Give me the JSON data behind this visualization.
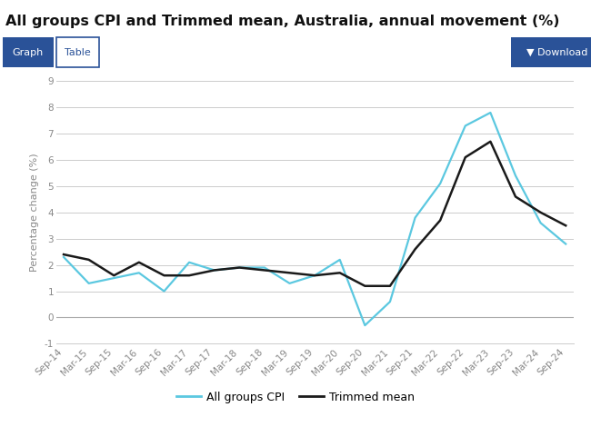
{
  "title": "All groups CPI and Trimmed mean, Australia, annual movement (%)",
  "ylabel": "Percentage change (%)",
  "ylim": [
    -1,
    9
  ],
  "yticks": [
    -1,
    0,
    1,
    2,
    3,
    4,
    5,
    6,
    7,
    8,
    9
  ],
  "bg_color": "#ffffff",
  "cpi_color": "#5bc8e0",
  "trimmed_color": "#1a1a1a",
  "labels": [
    "Sep-14",
    "Mar-15",
    "Sep-15",
    "Mar-16",
    "Sep-16",
    "Mar-17",
    "Sep-17",
    "Mar-18",
    "Sep-18",
    "Mar-19",
    "Sep-19",
    "Mar-20",
    "Sep-20",
    "Mar-21",
    "Sep-21",
    "Mar-22",
    "Sep-22",
    "Mar-23",
    "Sep-23",
    "Mar-24",
    "Sep-24"
  ],
  "cpi_values": [
    2.3,
    1.3,
    1.5,
    1.7,
    1.0,
    2.1,
    1.8,
    1.9,
    1.9,
    1.3,
    1.6,
    2.2,
    -0.3,
    0.6,
    3.8,
    5.1,
    7.3,
    7.8,
    5.4,
    3.6,
    2.8
  ],
  "trimmed_values": [
    2.4,
    2.2,
    1.6,
    2.1,
    1.6,
    1.6,
    1.8,
    1.9,
    1.8,
    1.7,
    1.6,
    1.7,
    1.2,
    1.2,
    2.6,
    3.7,
    6.1,
    6.7,
    4.6,
    4.0,
    3.5
  ],
  "legend_cpi": "All groups CPI",
  "legend_trimmed": "Trimmed mean",
  "btn_color": "#2a5298",
  "grid_color": "#cccccc",
  "tick_color": "#888888",
  "title_fontsize": 11.5,
  "axis_fontsize": 8,
  "tick_fontsize": 7.5
}
